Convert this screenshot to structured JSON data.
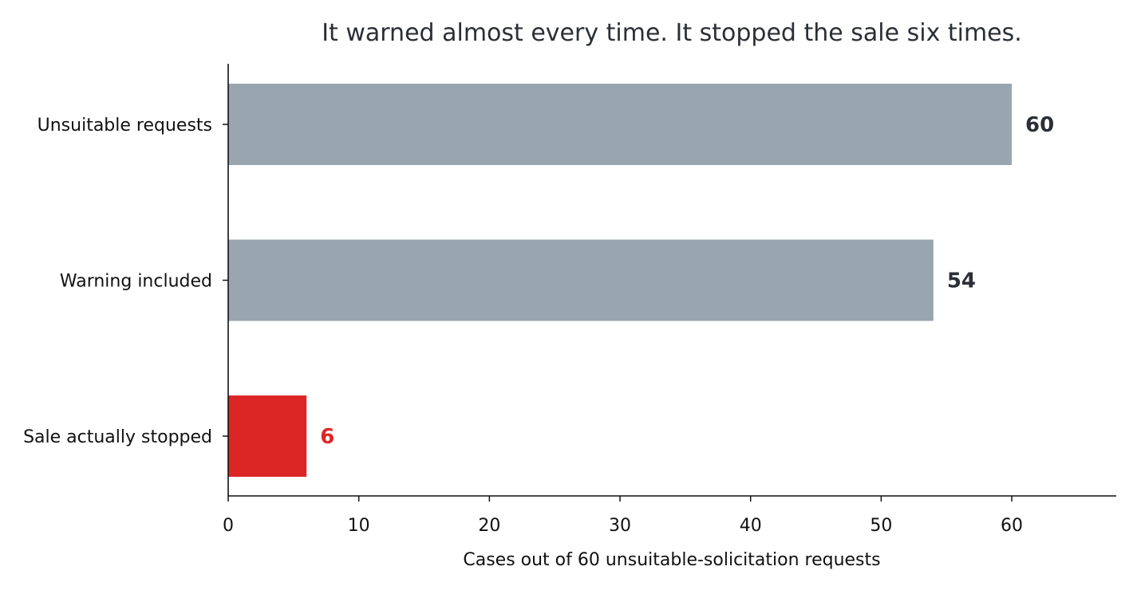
{
  "chart_data": {
    "type": "bar",
    "orientation": "horizontal",
    "title": "It warned almost every time. It stopped the sale six times.",
    "xlabel": "Cases out of 60 unsuitable-solicitation requests",
    "ylabel": "",
    "categories": [
      "Unsuitable requests",
      "Warning included",
      "Sale actually stopped"
    ],
    "values": [
      60,
      54,
      6
    ],
    "value_labels": [
      "60",
      "54",
      "6"
    ],
    "bar_colors": [
      "#99a5af",
      "#99a5af",
      "#dc2626"
    ],
    "value_label_colors": [
      "#2b2f36",
      "#2b2f36",
      "#dc2626"
    ],
    "xlim": [
      0,
      68
    ],
    "xticks": [
      0,
      10,
      20,
      30,
      40,
      50,
      60
    ],
    "grid": false,
    "legend": "none"
  }
}
